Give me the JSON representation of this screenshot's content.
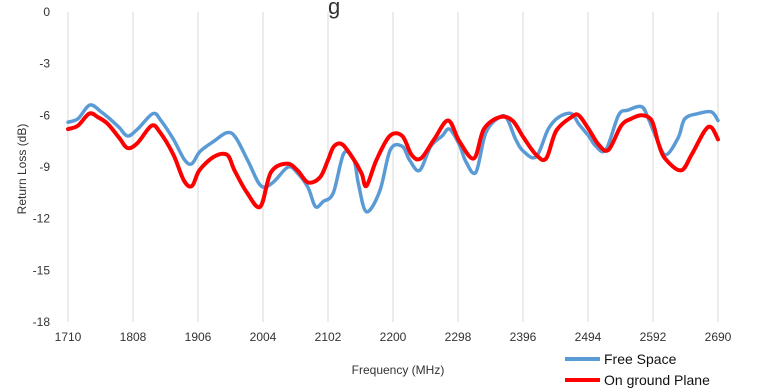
{
  "chart_data": {
    "type": "line",
    "title_fragment": "g",
    "xlabel": "Frequency (MHz)",
    "ylabel": "Return Loss (dB)",
    "xlim": [
      1710,
      2690
    ],
    "ylim": [
      -18,
      0
    ],
    "x_ticks": [
      "1710",
      "1808",
      "1906",
      "2004",
      "2102",
      "2200",
      "2298",
      "2396",
      "2494",
      "2592",
      "2690"
    ],
    "y_ticks": [
      "0",
      "-3",
      "-6",
      "-9",
      "-12",
      "-15",
      "-18"
    ],
    "grid": "vertical",
    "legend_position": "bottom-right",
    "series": [
      {
        "name": "Free Space",
        "color": "#5b9bd5",
        "x": [
          1710,
          1725,
          1743,
          1760,
          1773,
          1787,
          1800,
          1815,
          1838,
          1850,
          1869,
          1886,
          1897,
          1909,
          1930,
          1950,
          1963,
          1982,
          2001,
          2019,
          2042,
          2057,
          2072,
          2083,
          2095,
          2110,
          2126,
          2141,
          2148,
          2160,
          2180,
          2196,
          2214,
          2225,
          2240,
          2257,
          2274,
          2285,
          2300,
          2310,
          2325,
          2340,
          2361,
          2372,
          2385,
          2397,
          2416,
          2434,
          2450,
          2469,
          2480,
          2495,
          2506,
          2521,
          2540,
          2554,
          2575,
          2585,
          2597,
          2611,
          2630,
          2640,
          2660,
          2680,
          2690
        ],
        "values": [
          -6.4,
          -6.2,
          -5.4,
          -5.8,
          -6.2,
          -6.7,
          -7.2,
          -6.8,
          -5.9,
          -6.3,
          -7.4,
          -8.6,
          -8.8,
          -8.1,
          -7.5,
          -7.0,
          -7.3,
          -8.7,
          -10.1,
          -9.9,
          -9.0,
          -9.4,
          -10.2,
          -11.3,
          -11.0,
          -10.5,
          -8.2,
          -8.6,
          -10.0,
          -11.6,
          -10.4,
          -8.0,
          -7.8,
          -8.6,
          -9.2,
          -7.8,
          -7.2,
          -6.8,
          -7.7,
          -8.7,
          -9.3,
          -7.0,
          -6.1,
          -6.2,
          -7.4,
          -8.1,
          -8.4,
          -6.8,
          -6.1,
          -5.9,
          -6.5,
          -7.2,
          -7.8,
          -8.0,
          -6.0,
          -5.7,
          -5.5,
          -6.2,
          -7.3,
          -8.3,
          -7.3,
          -6.2,
          -5.9,
          -5.8,
          -6.3
        ]
      },
      {
        "name": "On ground Plane",
        "color": "#ff0000",
        "x": [
          1710,
          1725,
          1742,
          1755,
          1770,
          1787,
          1800,
          1815,
          1836,
          1849,
          1869,
          1885,
          1897,
          1908,
          1930,
          1950,
          1961,
          1980,
          2000,
          2016,
          2040,
          2056,
          2072,
          2090,
          2102,
          2111,
          2124,
          2143,
          2153,
          2160,
          2175,
          2195,
          2214,
          2228,
          2242,
          2262,
          2283,
          2300,
          2322,
          2337,
          2361,
          2380,
          2397,
          2416,
          2431,
          2446,
          2469,
          2480,
          2495,
          2510,
          2525,
          2544,
          2559,
          2575,
          2590,
          2600,
          2610,
          2634,
          2650,
          2670,
          2680,
          2690
        ],
        "values": [
          -6.8,
          -6.6,
          -5.9,
          -6.1,
          -6.5,
          -7.3,
          -7.9,
          -7.6,
          -6.6,
          -7.0,
          -8.3,
          -9.8,
          -10.1,
          -9.2,
          -8.4,
          -8.3,
          -9.2,
          -10.5,
          -11.3,
          -9.3,
          -8.8,
          -9.2,
          -9.9,
          -9.6,
          -8.6,
          -7.8,
          -7.7,
          -8.7,
          -9.4,
          -10.1,
          -8.6,
          -7.2,
          -7.2,
          -8.3,
          -8.5,
          -7.4,
          -6.3,
          -7.5,
          -8.5,
          -6.8,
          -6.1,
          -6.3,
          -7.3,
          -8.3,
          -8.5,
          -6.9,
          -6.1,
          -6.0,
          -6.8,
          -7.7,
          -8.0,
          -6.6,
          -6.2,
          -6.0,
          -6.3,
          -7.6,
          -8.5,
          -9.2,
          -8.3,
          -6.9,
          -6.7,
          -7.4
        ]
      }
    ]
  }
}
